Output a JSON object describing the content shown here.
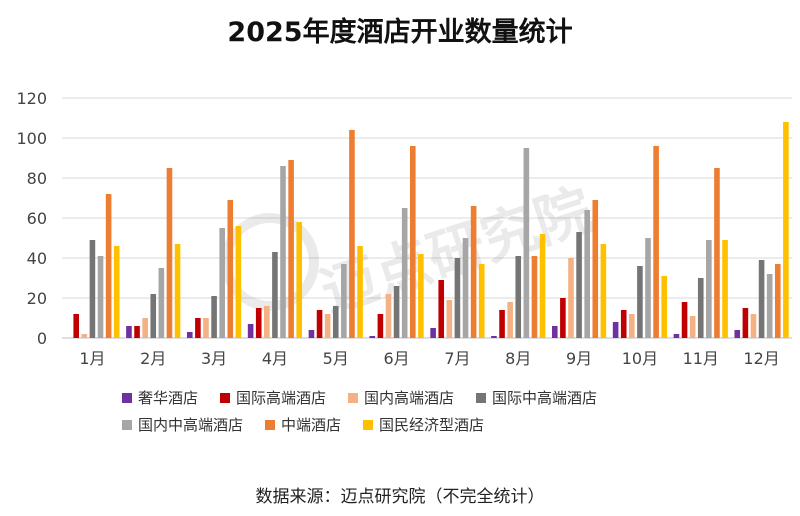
{
  "title": "2025年度酒店开业数量统计",
  "source": "数据来源：迈点研究院（不完全统计）",
  "watermark": "迈点研究院",
  "chart_data": {
    "type": "bar",
    "title": "2025年度酒店开业数量统计",
    "categories": [
      "1月",
      "2月",
      "3月",
      "4月",
      "5月",
      "6月",
      "7月",
      "8月",
      "9月",
      "10月",
      "11月",
      "12月"
    ],
    "ylim": [
      0,
      120
    ],
    "yticks": [
      0,
      20,
      40,
      60,
      80,
      100,
      120
    ],
    "grid": true,
    "legend_position": "bottom",
    "series": [
      {
        "name": "奢华酒店",
        "color": "#7030a0",
        "values": [
          0,
          6,
          3,
          7,
          4,
          1,
          5,
          1,
          6,
          8,
          2,
          4
        ]
      },
      {
        "name": "国际高端酒店",
        "color": "#c00000",
        "values": [
          12,
          6,
          10,
          15,
          14,
          12,
          29,
          14,
          20,
          14,
          18,
          15
        ]
      },
      {
        "name": "国内高端酒店",
        "color": "#f4b183",
        "values": [
          2,
          10,
          10,
          16,
          12,
          22,
          19,
          18,
          40,
          12,
          11,
          12
        ]
      },
      {
        "name": "国际中高端酒店",
        "color": "#757575",
        "values": [
          49,
          22,
          21,
          43,
          16,
          26,
          40,
          41,
          53,
          36,
          30,
          39
        ]
      },
      {
        "name": "国内中高端酒店",
        "color": "#a6a6a6",
        "values": [
          41,
          35,
          55,
          86,
          37,
          65,
          50,
          95,
          64,
          50,
          49,
          32
        ]
      },
      {
        "name": "中端酒店",
        "color": "#ed7d31",
        "values": [
          72,
          85,
          69,
          89,
          104,
          96,
          66,
          41,
          69,
          96,
          85,
          37
        ]
      },
      {
        "name": "国民经济型酒店",
        "color": "#ffc000",
        "values": [
          46,
          47,
          56,
          58,
          46,
          42,
          37,
          52,
          47,
          31,
          49,
          108
        ]
      }
    ]
  }
}
